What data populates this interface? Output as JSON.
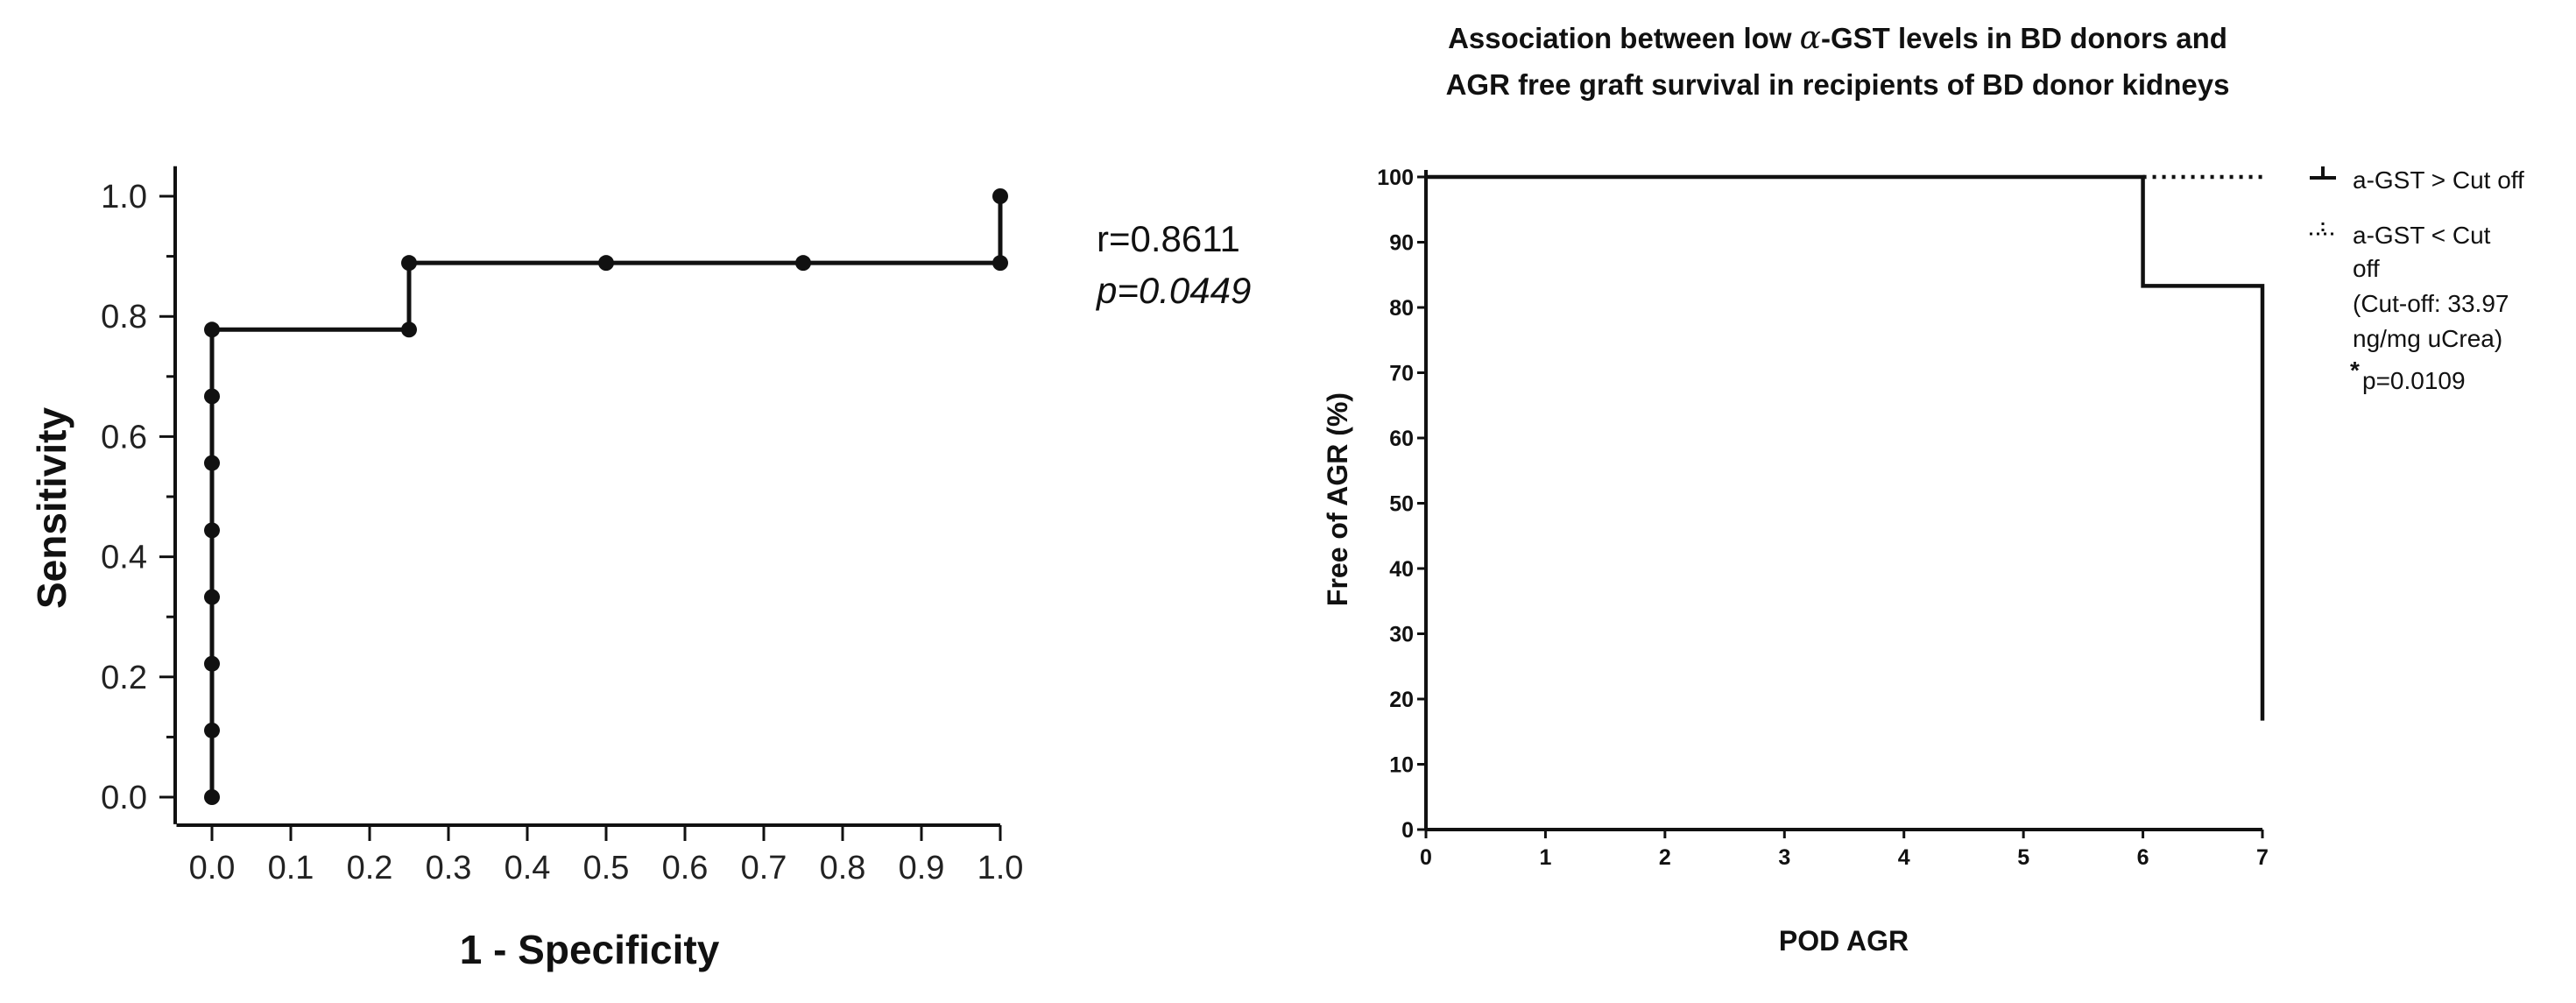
{
  "chart_data": [
    {
      "type": "line",
      "xlabel": "1 - Specificity",
      "ylabel": "Sensitivity",
      "xlim": [
        0,
        1
      ],
      "ylim": [
        0,
        1
      ],
      "x_ticks": [
        "0.0",
        "0.1",
        "0.2",
        "0.3",
        "0.4",
        "0.5",
        "0.6",
        "0.7",
        "0.8",
        "0.9",
        "1.0"
      ],
      "y_ticks": [
        "0.0",
        "0.2",
        "0.4",
        "0.6",
        "0.8",
        "1.0"
      ],
      "points": [
        {
          "x": 0.0,
          "y": 0.0
        },
        {
          "x": 0.0,
          "y": 0.111
        },
        {
          "x": 0.0,
          "y": 0.222
        },
        {
          "x": 0.0,
          "y": 0.333
        },
        {
          "x": 0.0,
          "y": 0.444
        },
        {
          "x": 0.0,
          "y": 0.556
        },
        {
          "x": 0.0,
          "y": 0.667
        },
        {
          "x": 0.0,
          "y": 0.778
        },
        {
          "x": 0.25,
          "y": 0.778
        },
        {
          "x": 0.25,
          "y": 0.889
        },
        {
          "x": 0.5,
          "y": 0.889
        },
        {
          "x": 0.75,
          "y": 0.889
        },
        {
          "x": 1.0,
          "y": 0.889
        },
        {
          "x": 1.0,
          "y": 1.0
        }
      ],
      "annotation_r": "r=0.8611",
      "annotation_p": "p=0.0449"
    },
    {
      "type": "line",
      "title_line1_pre": "Association between low ",
      "title_line1_alpha": "α",
      "title_line1_post": "-GST levels  in BD donors and",
      "title_line2": "AGR free graft survival in recipients of BD donor kidneys",
      "xlabel": "POD AGR",
      "ylabel": "Free of AGR (%)",
      "xlim": [
        0,
        7
      ],
      "ylim": [
        0,
        100
      ],
      "x_ticks": [
        "0",
        "1",
        "2",
        "3",
        "4",
        "5",
        "6",
        "7"
      ],
      "y_ticks": [
        "0",
        "10",
        "20",
        "30",
        "40",
        "50",
        "60",
        "70",
        "80",
        "90",
        "100"
      ],
      "series": [
        {
          "name": "a-GST > Cut off",
          "style": "solid",
          "points": [
            [
              0,
              100
            ],
            [
              6,
              100
            ],
            [
              6,
              83.3
            ],
            [
              7,
              83.3
            ],
            [
              7,
              16.7
            ]
          ]
        },
        {
          "name": "a-GST < Cut off",
          "style": "dotted",
          "points": [
            [
              0,
              100
            ],
            [
              7,
              100
            ]
          ]
        }
      ],
      "legend": {
        "solid_label": "a-GST > Cut off",
        "dotted_line1": "a-GST < Cut",
        "dotted_line2": "off",
        "note_line1": "(Cut-off: 33.97",
        "note_line2": "ng/mg uCrea)",
        "p_star": "*",
        "p_value": "p=0.0109"
      }
    }
  ]
}
